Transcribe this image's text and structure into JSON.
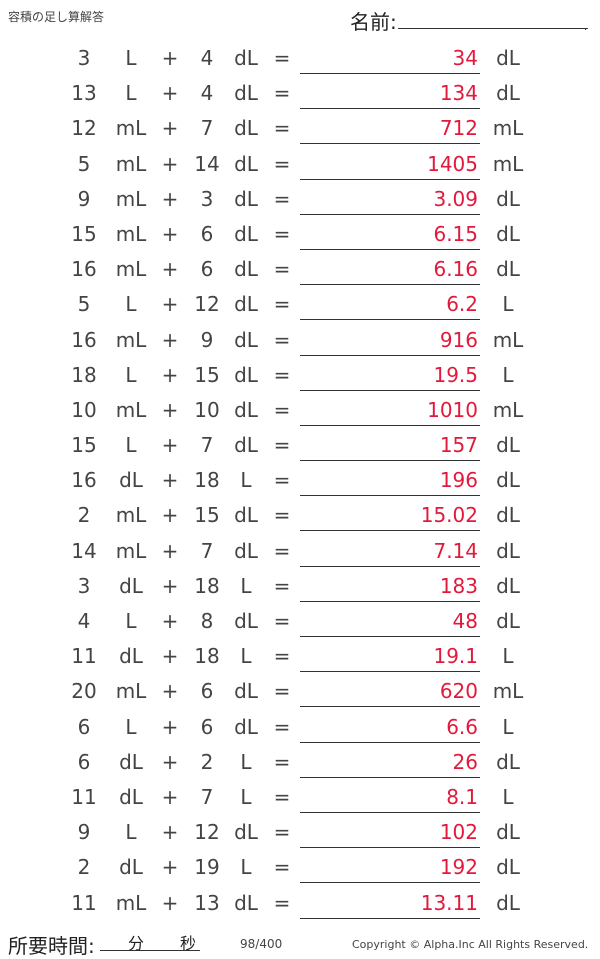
{
  "header": {
    "title": "容積の足し算解答",
    "name_label": "名前:",
    "name_dot": "."
  },
  "rows": [
    {
      "n1": "3",
      "u1": "L",
      "op": "+",
      "n2": "4",
      "u2": "dL",
      "eq": "=",
      "ans": "34",
      "au": "dL"
    },
    {
      "n1": "13",
      "u1": "L",
      "op": "+",
      "n2": "4",
      "u2": "dL",
      "eq": "=",
      "ans": "134",
      "au": "dL"
    },
    {
      "n1": "12",
      "u1": "mL",
      "op": "+",
      "n2": "7",
      "u2": "dL",
      "eq": "=",
      "ans": "712",
      "au": "mL"
    },
    {
      "n1": "5",
      "u1": "mL",
      "op": "+",
      "n2": "14",
      "u2": "dL",
      "eq": "=",
      "ans": "1405",
      "au": "mL"
    },
    {
      "n1": "9",
      "u1": "mL",
      "op": "+",
      "n2": "3",
      "u2": "dL",
      "eq": "=",
      "ans": "3.09",
      "au": "dL"
    },
    {
      "n1": "15",
      "u1": "mL",
      "op": "+",
      "n2": "6",
      "u2": "dL",
      "eq": "=",
      "ans": "6.15",
      "au": "dL"
    },
    {
      "n1": "16",
      "u1": "mL",
      "op": "+",
      "n2": "6",
      "u2": "dL",
      "eq": "=",
      "ans": "6.16",
      "au": "dL"
    },
    {
      "n1": "5",
      "u1": "L",
      "op": "+",
      "n2": "12",
      "u2": "dL",
      "eq": "=",
      "ans": "6.2",
      "au": "L"
    },
    {
      "n1": "16",
      "u1": "mL",
      "op": "+",
      "n2": "9",
      "u2": "dL",
      "eq": "=",
      "ans": "916",
      "au": "mL"
    },
    {
      "n1": "18",
      "u1": "L",
      "op": "+",
      "n2": "15",
      "u2": "dL",
      "eq": "=",
      "ans": "19.5",
      "au": "L"
    },
    {
      "n1": "10",
      "u1": "mL",
      "op": "+",
      "n2": "10",
      "u2": "dL",
      "eq": "=",
      "ans": "1010",
      "au": "mL"
    },
    {
      "n1": "15",
      "u1": "L",
      "op": "+",
      "n2": "7",
      "u2": "dL",
      "eq": "=",
      "ans": "157",
      "au": "dL"
    },
    {
      "n1": "16",
      "u1": "dL",
      "op": "+",
      "n2": "18",
      "u2": "L",
      "eq": "=",
      "ans": "196",
      "au": "dL"
    },
    {
      "n1": "2",
      "u1": "mL",
      "op": "+",
      "n2": "15",
      "u2": "dL",
      "eq": "=",
      "ans": "15.02",
      "au": "dL"
    },
    {
      "n1": "14",
      "u1": "mL",
      "op": "+",
      "n2": "7",
      "u2": "dL",
      "eq": "=",
      "ans": "7.14",
      "au": "dL"
    },
    {
      "n1": "3",
      "u1": "dL",
      "op": "+",
      "n2": "18",
      "u2": "L",
      "eq": "=",
      "ans": "183",
      "au": "dL"
    },
    {
      "n1": "4",
      "u1": "L",
      "op": "+",
      "n2": "8",
      "u2": "dL",
      "eq": "=",
      "ans": "48",
      "au": "dL"
    },
    {
      "n1": "11",
      "u1": "dL",
      "op": "+",
      "n2": "18",
      "u2": "L",
      "eq": "=",
      "ans": "19.1",
      "au": "L"
    },
    {
      "n1": "20",
      "u1": "mL",
      "op": "+",
      "n2": "6",
      "u2": "dL",
      "eq": "=",
      "ans": "620",
      "au": "mL"
    },
    {
      "n1": "6",
      "u1": "L",
      "op": "+",
      "n2": "6",
      "u2": "dL",
      "eq": "=",
      "ans": "6.6",
      "au": "L"
    },
    {
      "n1": "6",
      "u1": "dL",
      "op": "+",
      "n2": "2",
      "u2": "L",
      "eq": "=",
      "ans": "26",
      "au": "dL"
    },
    {
      "n1": "11",
      "u1": "dL",
      "op": "+",
      "n2": "7",
      "u2": "L",
      "eq": "=",
      "ans": "8.1",
      "au": "L"
    },
    {
      "n1": "9",
      "u1": "L",
      "op": "+",
      "n2": "12",
      "u2": "dL",
      "eq": "=",
      "ans": "102",
      "au": "dL"
    },
    {
      "n1": "2",
      "u1": "dL",
      "op": "+",
      "n2": "19",
      "u2": "L",
      "eq": "=",
      "ans": "192",
      "au": "dL"
    },
    {
      "n1": "11",
      "u1": "mL",
      "op": "+",
      "n2": "13",
      "u2": "dL",
      "eq": "=",
      "ans": "13.11",
      "au": "dL"
    }
  ],
  "footer": {
    "time_label": "所要時間:",
    "minutes_label": "分",
    "seconds_label": "秒",
    "page": "98/400",
    "copyright": "Copyright © Alpha.Inc All Rights Reserved."
  },
  "colors": {
    "answer": "#e2193b",
    "text": "#444444"
  }
}
